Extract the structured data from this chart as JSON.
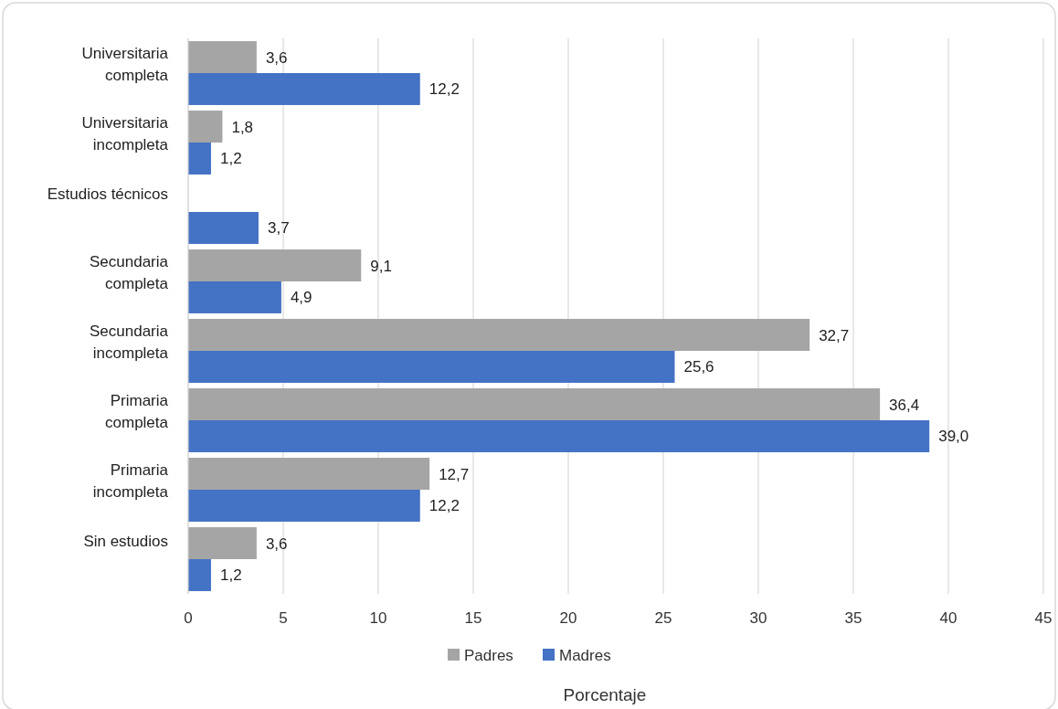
{
  "chart_data": {
    "type": "bar",
    "orientation": "horizontal",
    "xlabel": "Porcentaje",
    "categories": [
      "Universitaria\ncompleta",
      "Universitaria\nincompleta",
      "Estudios técnicos",
      "Secundaria\ncompleta",
      "Secundaria\nincompleta",
      "Primaria\ncompleta",
      "Primaria\nincompleta",
      "Sin estudios"
    ],
    "series": [
      {
        "name": "Padres",
        "color": "#a5a5a5",
        "values": [
          3.6,
          1.8,
          null,
          9.1,
          32.7,
          36.4,
          12.7,
          3.6
        ],
        "value_labels": [
          "3,6",
          "1,8",
          null,
          "9,1",
          "32,7",
          "36,4",
          "12,7",
          "3,6"
        ]
      },
      {
        "name": "Madres",
        "color": "#4472c4",
        "values": [
          12.2,
          1.2,
          3.7,
          4.9,
          25.6,
          39.0,
          12.2,
          1.2
        ],
        "value_labels": [
          "12,2",
          "1,2",
          "3,7",
          "4,9",
          "25,6",
          "39,0",
          "12,2",
          "1,2"
        ]
      }
    ],
    "xlim": [
      0,
      45
    ],
    "xticks": [
      0,
      5,
      10,
      15,
      20,
      25,
      30,
      35,
      40,
      45
    ],
    "grid": "x",
    "legend": "bottom"
  }
}
